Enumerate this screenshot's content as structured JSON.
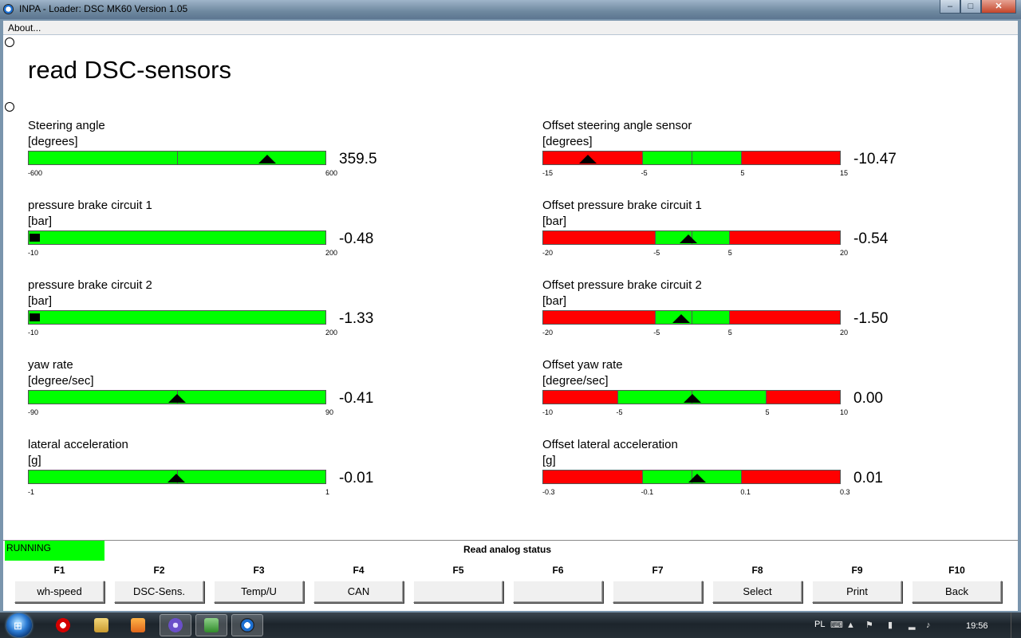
{
  "window": {
    "title": "INPA - Loader:  DSC MK60 Version 1.05",
    "minimize_glyph": "–",
    "maximize_glyph": "□",
    "close_glyph": "✕"
  },
  "menu": {
    "about": "About..."
  },
  "page_title": "read DSC-sensors",
  "gauges_left": [
    {
      "label": "Steering angle",
      "unit": "[degrees]",
      "value": "359.5",
      "min": -600,
      "max": 600,
      "reading": 359.5,
      "ticks": [
        {
          "text": "-600",
          "at": -600
        },
        {
          "text": "600",
          "at": 600
        }
      ],
      "zones": [],
      "marker": "triangle",
      "center_line": 0
    },
    {
      "label": "pressure brake circuit 1",
      "unit": "[bar]",
      "value": "-0.48",
      "min": -10,
      "max": 200,
      "reading": -0.48,
      "ticks": [
        {
          "text": "-10",
          "at": -10
        },
        {
          "text": "200",
          "at": 200
        }
      ],
      "zones": [],
      "marker": "square"
    },
    {
      "label": "pressure brake circuit 2",
      "unit": "[bar]",
      "value": "-1.33",
      "min": -10,
      "max": 200,
      "reading": -1.33,
      "ticks": [
        {
          "text": "-10",
          "at": -10
        },
        {
          "text": "200",
          "at": 200
        }
      ],
      "zones": [],
      "marker": "square"
    },
    {
      "label": "yaw rate",
      "unit": "[degree/sec]",
      "value": "-0.41",
      "min": -90,
      "max": 90,
      "reading": -0.41,
      "ticks": [
        {
          "text": "-90",
          "at": -90
        },
        {
          "text": "90",
          "at": 90
        }
      ],
      "zones": [],
      "marker": "triangle",
      "center_line": 0
    },
    {
      "label": "lateral acceleration",
      "unit": "[g]",
      "value": "-0.01",
      "min": -1,
      "max": 1,
      "reading": -0.01,
      "ticks": [
        {
          "text": "-1",
          "at": -1
        },
        {
          "text": "1",
          "at": 1
        }
      ],
      "zones": [],
      "marker": "triangle",
      "center_line": 0
    }
  ],
  "gauges_right": [
    {
      "label": "Offset steering angle sensor",
      "unit": "[degrees]",
      "value": "-10.47",
      "min": -15,
      "max": 15,
      "reading": -10.47,
      "ticks": [
        {
          "text": "-15",
          "at": -15
        },
        {
          "text": "-5",
          "at": -5
        },
        {
          "text": "5",
          "at": 5
        },
        {
          "text": "15",
          "at": 15
        }
      ],
      "zones": [
        -5,
        5
      ],
      "marker": "triangle",
      "center_line": 0
    },
    {
      "label": "Offset pressure brake circuit 1",
      "unit": "[bar]",
      "value": "-0.54",
      "min": -20,
      "max": 20,
      "reading": -0.54,
      "ticks": [
        {
          "text": "-20",
          "at": -20
        },
        {
          "text": "-5",
          "at": -5
        },
        {
          "text": "5",
          "at": 5
        },
        {
          "text": "20",
          "at": 20
        }
      ],
      "zones": [
        -5,
        5
      ],
      "marker": "triangle",
      "center_line": 0
    },
    {
      "label": "Offset pressure brake circuit 2",
      "unit": "[bar]",
      "value": "-1.50",
      "min": -20,
      "max": 20,
      "reading": -1.5,
      "ticks": [
        {
          "text": "-20",
          "at": -20
        },
        {
          "text": "-5",
          "at": -5
        },
        {
          "text": "5",
          "at": 5
        },
        {
          "text": "20",
          "at": 20
        }
      ],
      "zones": [
        -5,
        5
      ],
      "marker": "triangle",
      "center_line": 0
    },
    {
      "label": "Offset yaw rate",
      "unit": "[degree/sec]",
      "value": "0.00",
      "min": -10,
      "max": 10,
      "reading": 0.0,
      "ticks": [
        {
          "text": "-10",
          "at": -10
        },
        {
          "text": "-5",
          "at": -5
        },
        {
          "text": "5",
          "at": 5
        },
        {
          "text": "10",
          "at": 10
        }
      ],
      "zones": [
        -5,
        5
      ],
      "marker": "triangle",
      "center_line": 0
    },
    {
      "label": "Offset lateral acceleration",
      "unit": "[g]",
      "value": "0.01",
      "min": -0.3,
      "max": 0.3,
      "reading": 0.01,
      "ticks": [
        {
          "text": "-0.3",
          "at": -0.3
        },
        {
          "text": "-0.1",
          "at": -0.1
        },
        {
          "text": "0.1",
          "at": 0.1
        },
        {
          "text": "0.3",
          "at": 0.3
        }
      ],
      "zones": [
        -0.1,
        0.1
      ],
      "marker": "triangle",
      "center_line": 0
    }
  ],
  "colors": {
    "ok_zone": "#00ff00",
    "out_zone": "#ff0000",
    "running": "#00ff00"
  },
  "status": {
    "running": "RUNNING",
    "text": "Read analog status"
  },
  "function_keys": [
    {
      "key": "F1",
      "label": "wh-speed"
    },
    {
      "key": "F2",
      "label": "DSC-Sens."
    },
    {
      "key": "F3",
      "label": "Temp/U"
    },
    {
      "key": "F4",
      "label": "CAN"
    },
    {
      "key": "F5",
      "label": ""
    },
    {
      "key": "F6",
      "label": ""
    },
    {
      "key": "F7",
      "label": ""
    },
    {
      "key": "F8",
      "label": "Select"
    },
    {
      "key": "F9",
      "label": "Print"
    },
    {
      "key": "F10",
      "label": "Back"
    }
  ],
  "taskbar": {
    "items": [
      "windows-start",
      "opera-icon",
      "folder-icon",
      "media-player-icon",
      "browser-icon",
      "excel-icon",
      "inpa-icon"
    ],
    "tray": {
      "language": "PL",
      "clock": "19:56"
    }
  }
}
